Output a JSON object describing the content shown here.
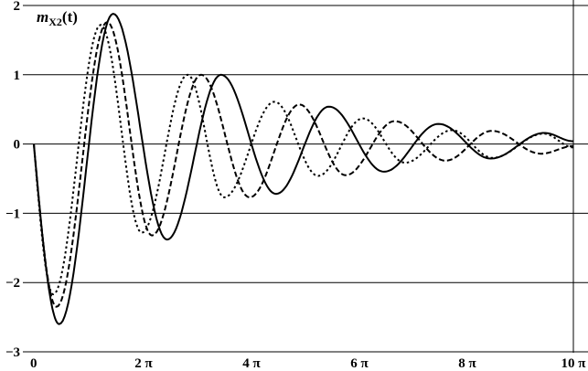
{
  "chart_data": {
    "type": "line",
    "title": "m_X2(t)",
    "title_parts": {
      "main": "m",
      "sub": "X2",
      "arg": "(t)"
    },
    "x_unit": "π",
    "xlim": [
      0,
      10
    ],
    "ylim": [
      -3,
      2
    ],
    "grid": "horizontal",
    "x_ticks": [
      {
        "value": 0,
        "label": "0"
      },
      {
        "value": 2,
        "label": "2 π"
      },
      {
        "value": 4,
        "label": "4 π"
      },
      {
        "value": 6,
        "label": "6 π"
      },
      {
        "value": 8,
        "label": "8 π"
      },
      {
        "value": 10,
        "label": "10 π"
      }
    ],
    "y_ticks": [
      {
        "value": 2,
        "label": "2"
      },
      {
        "value": 1,
        "label": "1"
      },
      {
        "value": 0,
        "label": "0"
      },
      {
        "value": -1,
        "label": "−1"
      },
      {
        "value": -2,
        "label": "−2"
      },
      {
        "value": -3,
        "label": "−3"
      }
    ],
    "series": [
      {
        "style": "solid",
        "color": "#000000",
        "points": [
          [
            0,
            0
          ],
          [
            0.47,
            -2.6
          ],
          [
            1.47,
            1.88
          ],
          [
            2.47,
            -1.38
          ],
          [
            3.47,
            1.0
          ],
          [
            4.49,
            -0.72
          ],
          [
            5.47,
            0.54
          ],
          [
            6.49,
            -0.4
          ],
          [
            7.5,
            0.29
          ],
          [
            8.47,
            -0.21
          ],
          [
            9.46,
            0.16
          ],
          [
            10,
            0.04
          ]
        ]
      },
      {
        "style": "dashed",
        "color": "#000000",
        "points": [
          [
            0,
            0
          ],
          [
            0.42,
            -2.35
          ],
          [
            1.36,
            1.76
          ],
          [
            2.19,
            -1.32
          ],
          [
            3.1,
            1.0
          ],
          [
            4.0,
            -0.77
          ],
          [
            4.92,
            0.57
          ],
          [
            5.78,
            -0.45
          ],
          [
            6.69,
            0.33
          ],
          [
            7.63,
            -0.24
          ],
          [
            8.49,
            0.19
          ],
          [
            9.4,
            -0.14
          ],
          [
            10,
            -0.03
          ]
        ]
      },
      {
        "style": "dash-dot",
        "color": "#000000",
        "points": [
          [
            0,
            0
          ],
          [
            0.36,
            -2.17
          ],
          [
            1.24,
            1.72
          ],
          [
            2.0,
            -1.28
          ],
          [
            2.85,
            1.0
          ],
          [
            3.53,
            -0.77
          ],
          [
            4.46,
            0.61
          ],
          [
            5.27,
            -0.46
          ],
          [
            6.1,
            0.37
          ],
          [
            6.88,
            -0.27
          ],
          [
            7.75,
            0.2
          ],
          [
            8.5,
            -0.2
          ],
          [
            9.45,
            0.15
          ],
          [
            10,
            -0.05
          ]
        ]
      }
    ]
  }
}
